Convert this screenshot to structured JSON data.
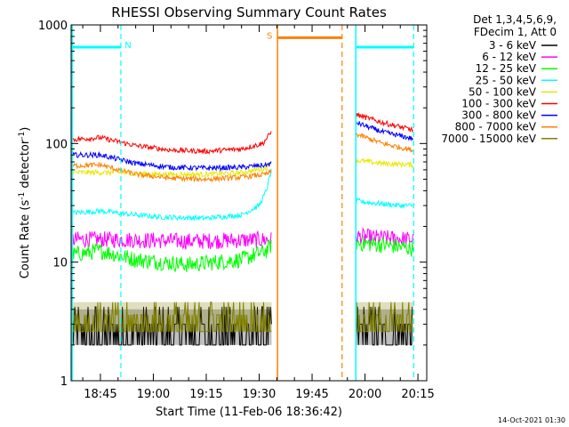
{
  "chart_data": {
    "type": "line",
    "title": "RHESSI Observing Summary Count Rates",
    "xlabel": "Start Time (11-Feb-06 18:36:42)",
    "ylabel_main": "Count Rate (s",
    "ylabel_sup1": "-1",
    "ylabel_mid": " detector",
    "ylabel_sup2": "-1",
    "ylabel_end": ")",
    "x_unit": "minutes after 18:00",
    "xlim": [
      36.7,
      137.5
    ],
    "ylim": [
      1,
      1000
    ],
    "yscale": "log",
    "x_ticks": [
      {
        "value": 45,
        "label": "18:45"
      },
      {
        "value": 60,
        "label": "19:00"
      },
      {
        "value": 75,
        "label": "19:15"
      },
      {
        "value": 90,
        "label": "19:30"
      },
      {
        "value": 105,
        "label": "19:45"
      },
      {
        "value": 120,
        "label": "20:00"
      },
      {
        "value": 135,
        "label": "20:15"
      }
    ],
    "y_ticks": [
      {
        "value": 1,
        "label": "1"
      },
      {
        "value": 10,
        "label": "10"
      },
      {
        "value": 100,
        "label": "100"
      },
      {
        "value": 1000,
        "label": "1000"
      }
    ],
    "legend_header": [
      "Det 1,3,4,5,6,9,",
      "FDecim 1, Att 0"
    ],
    "series": [
      {
        "name": "3 - 6 keV",
        "color": "#000000",
        "kind": "bg",
        "data": [
          [
            37,
            2.6
          ],
          [
            60,
            2.6
          ],
          [
            80,
            2.6
          ],
          [
            93.5,
            2.6
          ],
          [
            117.5,
            2.4
          ],
          [
            133.5,
            2.4
          ]
        ]
      },
      {
        "name": "6 - 12 keV",
        "color": "#ff00ff",
        "kind": "noisy",
        "data": [
          [
            37,
            15.5
          ],
          [
            50,
            15.5
          ],
          [
            70,
            15.0
          ],
          [
            85,
            15.3
          ],
          [
            93.5,
            15.5
          ],
          [
            117.5,
            16.5
          ],
          [
            125,
            16
          ],
          [
            133.5,
            15.5
          ]
        ]
      },
      {
        "name": "12 - 25 keV",
        "color": "#00ff00",
        "kind": "noisy",
        "data": [
          [
            37,
            11.5
          ],
          [
            45,
            12.5
          ],
          [
            55,
            10.5
          ],
          [
            70,
            9.5
          ],
          [
            85,
            10.5
          ],
          [
            92,
            12.5
          ],
          [
            93.5,
            14
          ],
          [
            117.5,
            14.5
          ],
          [
            125,
            14
          ],
          [
            133.5,
            13
          ]
        ]
      },
      {
        "name": "25 - 50 keV",
        "color": "#00ffff",
        "kind": "smooth",
        "data": [
          [
            37,
            26
          ],
          [
            45,
            27
          ],
          [
            55,
            25
          ],
          [
            62,
            24
          ],
          [
            75,
            23.5
          ],
          [
            85,
            25
          ],
          [
            90,
            30
          ],
          [
            92,
            40
          ],
          [
            93.5,
            60
          ],
          [
            117.5,
            33
          ],
          [
            120,
            32
          ],
          [
            125,
            31
          ],
          [
            130,
            30
          ],
          [
            133.5,
            30
          ]
        ]
      },
      {
        "name": "50 - 100 keV",
        "color": "#e8e800",
        "kind": "smooth",
        "data": [
          [
            37,
            57
          ],
          [
            50,
            57
          ],
          [
            60,
            55
          ],
          [
            75,
            55
          ],
          [
            85,
            57
          ],
          [
            92,
            62
          ],
          [
            93.5,
            72
          ],
          [
            117.5,
            72
          ],
          [
            125,
            68
          ],
          [
            133.5,
            66
          ]
        ]
      },
      {
        "name": "100 - 300 keV",
        "color": "#ff0000",
        "kind": "smooth",
        "data": [
          [
            37,
            108
          ],
          [
            45,
            112
          ],
          [
            55,
            96
          ],
          [
            65,
            88
          ],
          [
            75,
            86
          ],
          [
            85,
            90
          ],
          [
            91,
            100
          ],
          [
            93.5,
            125
          ],
          [
            117.5,
            175
          ],
          [
            125,
            150
          ],
          [
            133.5,
            130
          ]
        ]
      },
      {
        "name": "300 - 800 keV",
        "color": "#0000ff",
        "kind": "smooth",
        "data": [
          [
            37,
            80
          ],
          [
            45,
            80
          ],
          [
            55,
            68
          ],
          [
            65,
            63
          ],
          [
            75,
            62
          ],
          [
            85,
            63
          ],
          [
            92,
            66
          ],
          [
            93.5,
            68
          ],
          [
            117.5,
            150
          ],
          [
            125,
            125
          ],
          [
            133.5,
            110
          ]
        ]
      },
      {
        "name": "800 - 7000 keV",
        "color": "#ff8000",
        "kind": "smooth",
        "data": [
          [
            37,
            65
          ],
          [
            45,
            66
          ],
          [
            55,
            55
          ],
          [
            65,
            51
          ],
          [
            75,
            50
          ],
          [
            85,
            52
          ],
          [
            92,
            55
          ],
          [
            93.5,
            58
          ],
          [
            117.5,
            120
          ],
          [
            125,
            100
          ],
          [
            133.5,
            88
          ]
        ]
      },
      {
        "name": "7000 - 15000 keV",
        "color": "#808000",
        "kind": "bg",
        "data": [
          [
            37,
            3.3
          ],
          [
            60,
            3.3
          ],
          [
            80,
            3.3
          ],
          [
            93.5,
            3.3
          ],
          [
            117.5,
            3.2
          ],
          [
            133.5,
            3.2
          ]
        ]
      }
    ],
    "gaps": [
      [
        50.8,
        117.4
      ]
    ],
    "orbit_markers": [
      {
        "label": "N",
        "color": "#00ffff",
        "start": 37,
        "end": 50.8,
        "level": 650,
        "end_dashed": true
      },
      {
        "label": "S",
        "color": "#ff8000",
        "start": 95.2,
        "end": 113.5,
        "level": 780,
        "end_dashed": true
      },
      {
        "label": "",
        "color": "#00ffff",
        "start": 117.4,
        "end": 133.8,
        "level": 650,
        "end_dashed": true
      }
    ],
    "timestamp": "14-Oct-2021 01:30"
  }
}
